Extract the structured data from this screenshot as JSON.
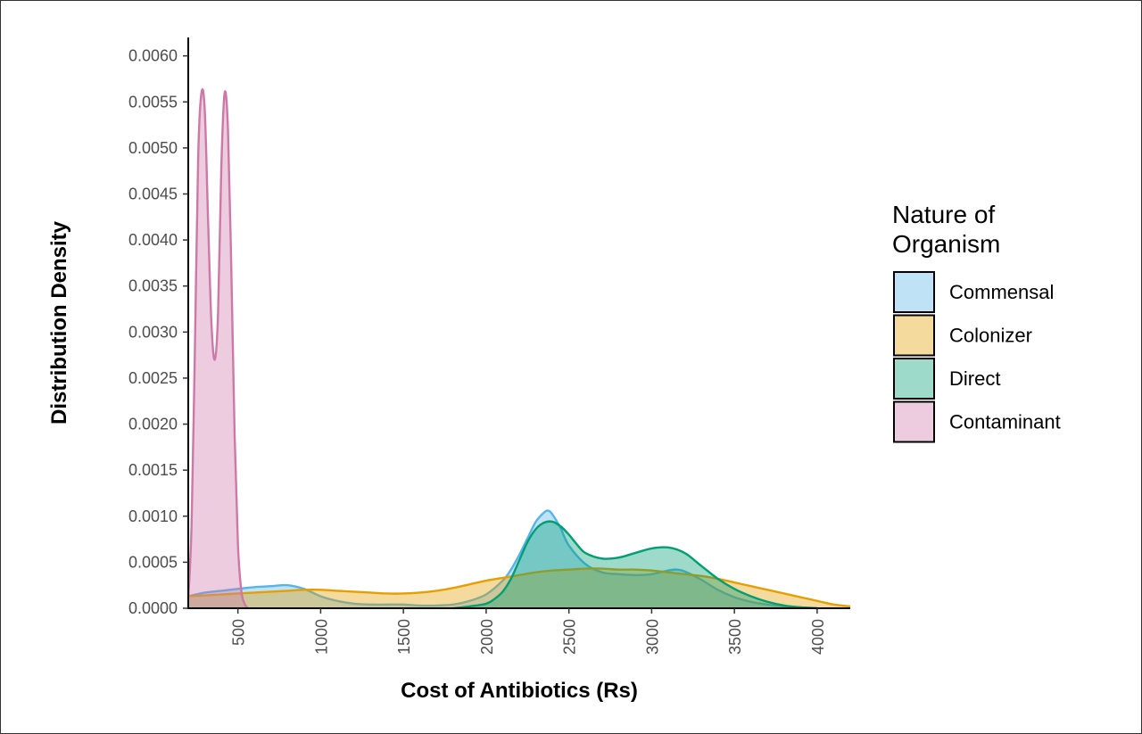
{
  "chart_data": {
    "type": "area",
    "subtype": "density",
    "xlabel": "Cost of Antibiotics (Rs)",
    "ylabel": "Distribution Density",
    "xlim": [
      200,
      4200
    ],
    "ylim": [
      0,
      0.0062
    ],
    "x_ticks": [
      "500",
      "1000",
      "1500",
      "2000",
      "2500",
      "3000",
      "3500",
      "4000"
    ],
    "y_ticks": [
      "0.0000",
      "0.0005",
      "0.0010",
      "0.0015",
      "0.0020",
      "0.0025",
      "0.0030",
      "0.0035",
      "0.0040",
      "0.0045",
      "0.0050",
      "0.0055",
      "0.0060"
    ],
    "grid": false,
    "legend": {
      "title_lines": [
        "Nature of",
        "Organism"
      ],
      "placement": "right"
    },
    "series": [
      {
        "name": "Commensal",
        "fill": "#56B4E9",
        "stroke": "#56B4E9",
        "x": [
          200,
          300,
          400,
          500,
          600,
          700,
          800,
          900,
          1000,
          1100,
          1200,
          1300,
          1400,
          1500,
          1600,
          1700,
          1800,
          1900,
          2000,
          2100,
          2150,
          2200,
          2250,
          2300,
          2350,
          2375,
          2400,
          2450,
          2500,
          2600,
          2700,
          2800,
          2900,
          3000,
          3100,
          3150,
          3200,
          3300,
          3400,
          3500,
          3600,
          3700,
          3800,
          3900,
          4000
        ],
        "y": [
          0.00013,
          0.00017,
          0.00019,
          0.00021,
          0.00023,
          0.00024,
          0.00025,
          0.00021,
          0.00013,
          8e-05,
          5e-05,
          4e-05,
          4e-05,
          4e-05,
          3e-05,
          3e-05,
          4e-05,
          8e-05,
          0.00015,
          0.0003,
          0.00042,
          0.00058,
          0.00076,
          0.00094,
          0.00104,
          0.00106,
          0.00102,
          0.00087,
          0.00068,
          0.00048,
          0.00039,
          0.00037,
          0.00036,
          0.00037,
          0.00041,
          0.00042,
          0.0004,
          0.00031,
          0.0002,
          0.00012,
          7e-05,
          4e-05,
          2e-05,
          1e-05,
          0.0
        ]
      },
      {
        "name": "Colonizer",
        "fill": "#E69F00",
        "stroke": "#E69F00",
        "x": [
          200,
          300,
          400,
          500,
          600,
          700,
          800,
          900,
          1000,
          1100,
          1200,
          1300,
          1400,
          1500,
          1600,
          1700,
          1800,
          1900,
          2000,
          2100,
          2200,
          2300,
          2400,
          2500,
          2600,
          2700,
          2800,
          2900,
          3000,
          3100,
          3200,
          3300,
          3400,
          3500,
          3600,
          3700,
          3800,
          3900,
          4000,
          4100,
          4200
        ],
        "y": [
          0.00013,
          0.00014,
          0.00015,
          0.00016,
          0.00017,
          0.00018,
          0.00019,
          0.0002,
          0.0002,
          0.00019,
          0.00018,
          0.00017,
          0.00016,
          0.00016,
          0.00017,
          0.00019,
          0.00022,
          0.00026,
          0.0003,
          0.00033,
          0.00036,
          0.00039,
          0.00041,
          0.00042,
          0.00043,
          0.00043,
          0.00042,
          0.00042,
          0.00041,
          0.00039,
          0.00037,
          0.00035,
          0.00032,
          0.00028,
          0.00024,
          0.0002,
          0.00016,
          0.00012,
          8e-05,
          4e-05,
          2e-05
        ]
      },
      {
        "name": "Direct",
        "fill": "#009E73",
        "stroke": "#009E73",
        "x": [
          1800,
          1900,
          2000,
          2050,
          2100,
          2150,
          2200,
          2250,
          2300,
          2350,
          2400,
          2450,
          2500,
          2550,
          2600,
          2700,
          2800,
          2900,
          3000,
          3100,
          3200,
          3300,
          3400,
          3500,
          3600,
          3700,
          3800,
          3900,
          4000
        ],
        "y": [
          0.0,
          2e-05,
          5e-05,
          0.0001,
          0.00018,
          0.00032,
          0.00052,
          0.00072,
          0.00086,
          0.00093,
          0.00094,
          0.00089,
          0.0008,
          0.00069,
          0.0006,
          0.00054,
          0.00055,
          0.0006,
          0.00065,
          0.00066,
          0.0006,
          0.00046,
          0.00032,
          0.00021,
          0.00013,
          7e-05,
          3e-05,
          1e-05,
          0.0
        ]
      },
      {
        "name": "Contaminant",
        "fill": "#CC79A7",
        "stroke": "#CC79A7",
        "x": [
          200,
          220,
          240,
          260,
          280,
          300,
          320,
          340,
          360,
          380,
          400,
          420,
          440,
          460,
          480,
          500,
          520,
          540,
          560
        ],
        "y": [
          0.0001,
          0.0009,
          0.0028,
          0.0049,
          0.0056,
          0.0054,
          0.0042,
          0.0031,
          0.0027,
          0.0032,
          0.0048,
          0.0056,
          0.0052,
          0.0037,
          0.0019,
          0.0007,
          0.0002,
          5e-05,
          0.0
        ]
      }
    ]
  }
}
